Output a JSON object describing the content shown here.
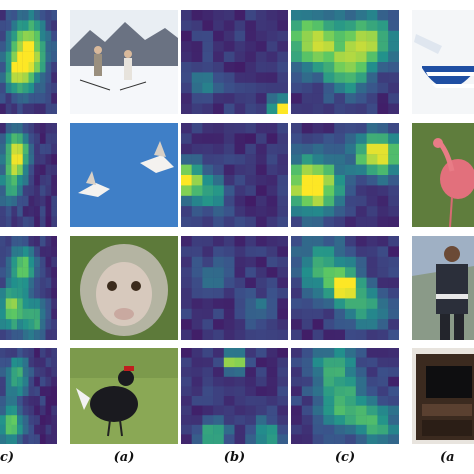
{
  "figure": {
    "labels": {
      "col0": "c)",
      "col1": "(a)",
      "col2": "(b)",
      "col3": "(c)",
      "col4": "(a"
    },
    "colors": {
      "heatmap_low": "#440154",
      "heatmap_mid": "#21918c",
      "heatmap_high": "#fde725"
    },
    "image_subjects": [
      [
        "two-skiers-photo",
        "pestle-mortar-photo"
      ],
      [
        "birds-in-sky-photo",
        "flamingo-photo"
      ],
      [
        "monkey-face-photo",
        "person-standing-photo"
      ],
      [
        "black-grouse-photo",
        "tv-cabinet-photo"
      ]
    ]
  }
}
